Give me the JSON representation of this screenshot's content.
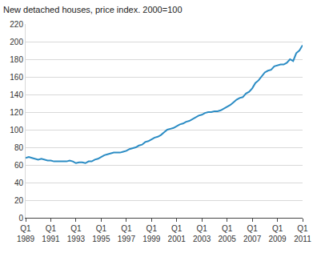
{
  "chart_data": {
    "type": "line",
    "title": "New detached houses, price index. 2000=100",
    "categories": [
      "Q1 1989",
      null,
      null,
      null,
      null,
      null,
      null,
      null,
      "Q1 1991",
      null,
      null,
      null,
      null,
      null,
      null,
      null,
      "Q1 1993",
      null,
      null,
      null,
      null,
      null,
      null,
      null,
      "Q1 1995",
      null,
      null,
      null,
      null,
      null,
      null,
      null,
      "Q1 1997",
      null,
      null,
      null,
      null,
      null,
      null,
      null,
      "Q1 1999",
      null,
      null,
      null,
      null,
      null,
      null,
      null,
      "Q1 2001",
      null,
      null,
      null,
      null,
      null,
      null,
      null,
      "Q1 2003",
      null,
      null,
      null,
      null,
      null,
      null,
      null,
      "Q1 2005",
      null,
      null,
      null,
      null,
      null,
      null,
      null,
      "Q1 2007",
      null,
      null,
      null,
      null,
      null,
      null,
      null,
      "Q1 2009",
      null,
      null,
      null,
      null,
      null,
      null,
      null,
      "Q1 2011"
    ],
    "values": [
      68,
      69,
      68,
      67,
      66,
      67,
      66,
      65,
      65,
      64,
      64,
      64,
      64,
      64,
      65,
      64,
      62,
      63,
      63,
      62,
      64,
      64,
      66,
      67,
      69,
      71,
      72,
      73,
      74,
      74,
      74,
      75,
      76,
      78,
      79,
      80,
      82,
      83,
      86,
      87,
      89,
      91,
      92,
      94,
      97,
      100,
      101,
      102,
      104,
      106,
      107,
      109,
      110,
      112,
      114,
      116,
      117,
      119,
      120,
      120,
      121,
      121,
      122,
      124,
      126,
      128,
      131,
      134,
      136,
      137,
      141,
      143,
      147,
      153,
      156,
      160,
      165,
      167,
      168,
      172,
      173,
      174,
      174,
      176,
      180,
      178,
      187,
      190,
      196
    ],
    "color": "#2b8cc4",
    "ylim": [
      0,
      220
    ],
    "yticks": [
      0,
      20,
      40,
      60,
      80,
      100,
      120,
      140,
      160,
      180,
      200,
      220
    ],
    "grid": true
  }
}
